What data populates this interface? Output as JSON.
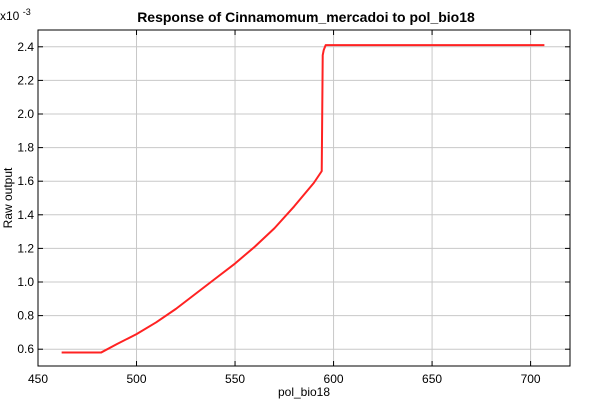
{
  "chart_data": {
    "type": "line",
    "title": "Response of Cinnamomum_mercadoi to pol_bio18",
    "xlabel": "pol_bio18",
    "ylabel": "Raw output",
    "y_multiplier_base": "x10",
    "y_multiplier_exp": "-3",
    "xlim": [
      450,
      720
    ],
    "ylim": [
      0.5,
      2.5
    ],
    "x_ticks": [
      450,
      500,
      550,
      600,
      650,
      700
    ],
    "y_ticks": [
      0.6,
      0.8,
      1.0,
      1.2,
      1.4,
      1.6,
      1.8,
      2.0,
      2.2,
      2.4
    ],
    "x_tick_labels": [
      "450",
      "500",
      "550",
      "600",
      "650",
      "700"
    ],
    "y_tick_labels": [
      "0.6",
      "0.8",
      "1.0",
      "1.2",
      "1.4",
      "1.6",
      "1.8",
      "2.0",
      "2.2",
      "2.4"
    ],
    "grid": true,
    "series": [
      {
        "color": "#ff2222",
        "x": [
          462,
          470,
          482,
          490,
          500,
          510,
          520,
          530,
          540,
          550,
          560,
          570,
          580,
          590,
          594,
          594.5,
          595,
          596,
          600,
          620,
          650,
          680,
          707
        ],
        "y": [
          0.58,
          0.58,
          0.58,
          0.63,
          0.69,
          0.76,
          0.84,
          0.93,
          1.02,
          1.11,
          1.21,
          1.32,
          1.45,
          1.59,
          1.66,
          2.35,
          2.38,
          2.41,
          2.41,
          2.41,
          2.41,
          2.41,
          2.41
        ]
      }
    ]
  }
}
